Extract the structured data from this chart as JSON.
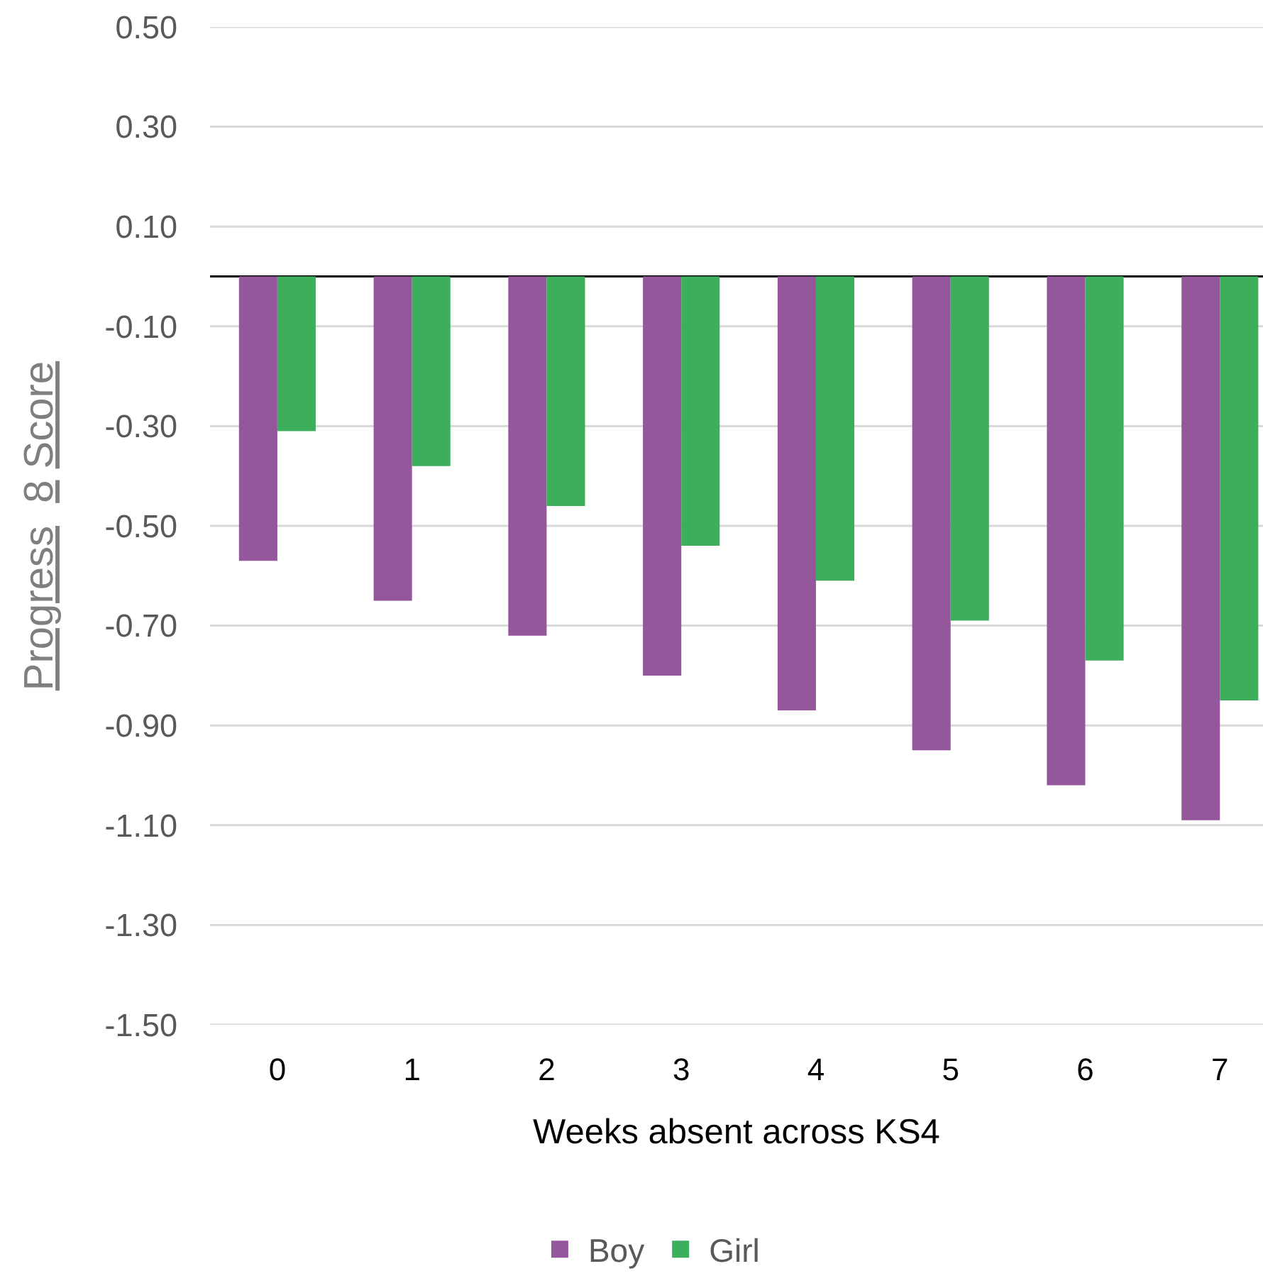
{
  "chart_data": {
    "type": "bar",
    "xlabel": "Weeks absent across KS4",
    "ylabel": "Progress  8 Score",
    "categories": [
      "0",
      "1",
      "2",
      "3",
      "4",
      "5",
      "6",
      "7"
    ],
    "series": [
      {
        "name": "Boy",
        "color": "#95579b",
        "values": [
          -0.57,
          -0.65,
          -0.72,
          -0.8,
          -0.87,
          -0.95,
          -1.02,
          -1.09
        ]
      },
      {
        "name": "Girl",
        "color": "#3daf5c",
        "values": [
          -0.31,
          -0.38,
          -0.46,
          -0.54,
          -0.61,
          -0.69,
          -0.77,
          -0.85
        ]
      }
    ],
    "ylim": [
      -1.5,
      0.5
    ],
    "yticks": [
      {
        "value": 0.5,
        "label": "0.50"
      },
      {
        "value": 0.3,
        "label": "0.30"
      },
      {
        "value": 0.1,
        "label": "0.10"
      },
      {
        "value": -0.1,
        "label": "-0.10"
      },
      {
        "value": -0.3,
        "label": "-0.30"
      },
      {
        "value": -0.5,
        "label": "-0.50"
      },
      {
        "value": -0.7,
        "label": "-0.70"
      },
      {
        "value": -0.9,
        "label": "-0.90"
      },
      {
        "value": -1.1,
        "label": "-1.10"
      },
      {
        "value": -1.3,
        "label": "-1.30"
      },
      {
        "value": -1.5,
        "label": "-1.50"
      }
    ],
    "grid": "y",
    "legend": "bottom"
  }
}
